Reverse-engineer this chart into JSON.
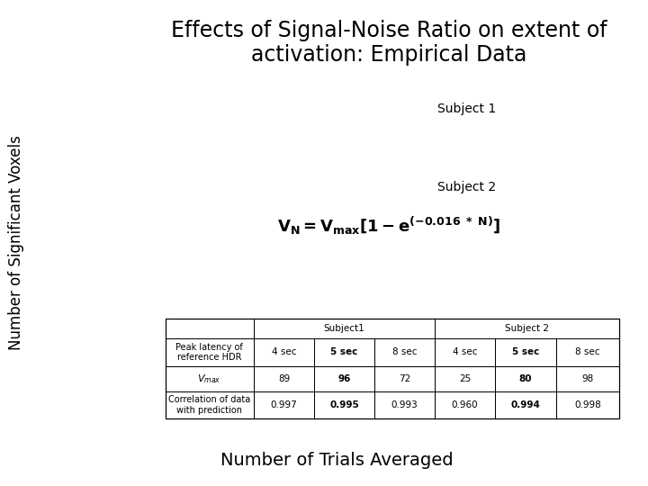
{
  "title": "Effects of Signal-Noise Ratio on extent of\nactivation: Empirical Data",
  "ylabel": "Number of Significant Voxels",
  "xlabel": "Number of Trials Averaged",
  "subject1_label": "Subject 1",
  "subject2_label": "Subject 2",
  "bg_color": "#ffffff",
  "table_row1_values": [
    "89",
    "96",
    "72",
    "25",
    "80",
    "98"
  ],
  "table_row2_values": [
    "0.997",
    "0.995",
    "0.993",
    "0.960",
    "0.994",
    "0.998"
  ],
  "title_fontsize": 17,
  "ylabel_fontsize": 12,
  "xlabel_fontsize": 14,
  "subject_fontsize": 10,
  "formula_fontsize": 13,
  "table_fontsize": 7.5
}
